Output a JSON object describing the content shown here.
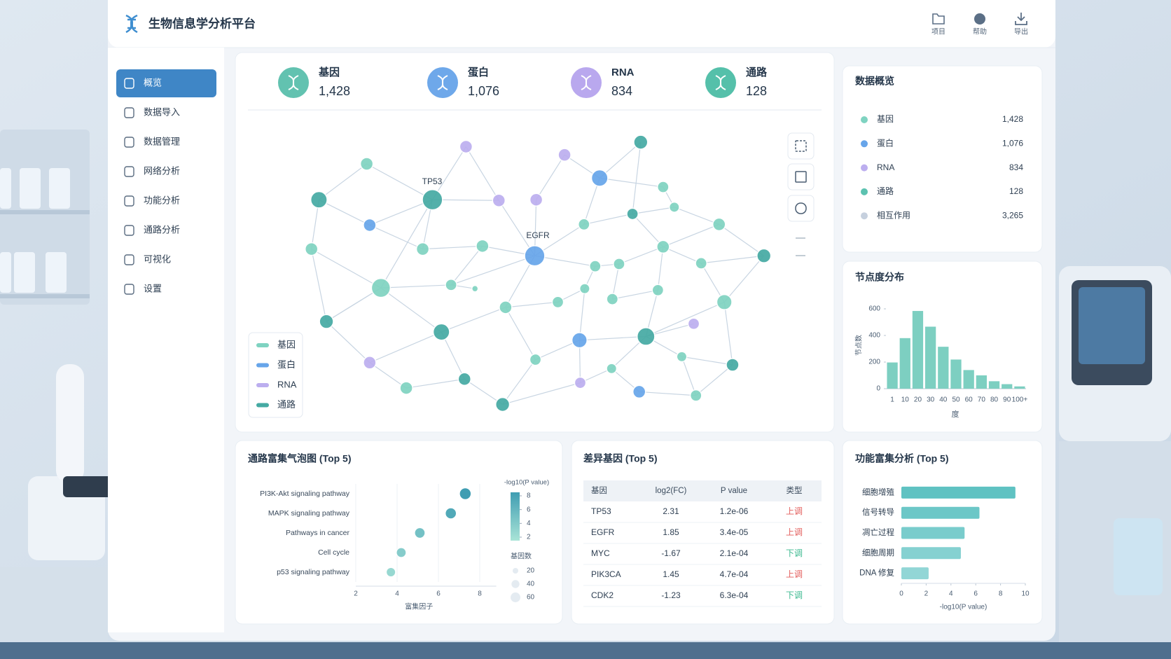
{
  "header": {
    "title": "生物信息学分析平台",
    "actions": [
      "项目",
      "帮助",
      "导出"
    ]
  },
  "nav": {
    "items": [
      "概览",
      "数据导入",
      "数据管理",
      "网络分析",
      "功能分析",
      "通路分析",
      "可视化",
      "设置"
    ]
  },
  "stats": [
    {
      "label": "基因",
      "value": "1,428"
    },
    {
      "label": "蛋白",
      "value": "1,076"
    },
    {
      "label": "RNA",
      "value": "834"
    },
    {
      "label": "通路",
      "value": "128"
    }
  ],
  "network": {
    "node_labels": [
      "TP53",
      "EGFR"
    ],
    "legend": [
      "基因",
      "蛋白",
      "RNA",
      "通路"
    ]
  },
  "overview": {
    "title": "数据概览",
    "items": [
      {
        "label": "基因",
        "value": "1,428"
      },
      {
        "label": "蛋白",
        "value": "1,076"
      },
      {
        "label": "RNA",
        "value": "834"
      },
      {
        "label": "通路",
        "value": "128"
      },
      {
        "label": "相互作用",
        "value": "3,265"
      }
    ]
  },
  "chart_data": [
    {
      "type": "bar",
      "title": "节点度分布",
      "categories": [
        "1",
        "10",
        "20",
        "30",
        "40",
        "50",
        "60",
        "70",
        "80",
        "90",
        "100+"
      ],
      "values": [
        197,
        380,
        584,
        466,
        315,
        219,
        140,
        100,
        56,
        34,
        17
      ],
      "color": "#7dcfc1",
      "ylim": [
        0,
        650
      ],
      "yticks": [
        0,
        200,
        400,
        600
      ],
      "xlabel": "度",
      "ylabel": "节点数"
    },
    {
      "type": "scatter",
      "title": "通路富集气泡图 (Top 5)",
      "categories": [
        "PI3K-Akt signaling pathway",
        "MAPK signaling pathway",
        "Pathways in cancer",
        "Cell cycle",
        "p53 signaling pathway"
      ],
      "x": [
        7.3,
        6.6,
        5.1,
        4.2,
        3.7
      ],
      "color_values": [
        8,
        7,
        5,
        4,
        3
      ],
      "sizes": [
        40,
        36,
        32,
        28,
        25
      ],
      "xlim": [
        2,
        8.8
      ],
      "xticks": [
        2,
        4,
        6,
        8
      ],
      "xlabel": "富集因子",
      "grid": true,
      "colorbar": {
        "title": "-log10(P value)",
        "ticks": [
          8,
          6,
          4,
          2
        ],
        "colors": [
          "#a9e4d7",
          "#3f9db2"
        ]
      },
      "size_legend": {
        "title": "基因数",
        "ticks": [
          20,
          40,
          60
        ]
      }
    },
    {
      "type": "barh",
      "title": "功能富集分析 (Top 5)",
      "categories": [
        "细胞增殖",
        "信号转导",
        "凋亡过程",
        "细胞周期",
        "DNA 修复"
      ],
      "values": [
        9.2,
        6.3,
        5.1,
        4.8,
        2.2
      ],
      "color": "#5fc2c2",
      "xlim": [
        0,
        10
      ],
      "xticks": [
        0,
        2,
        4,
        6,
        8,
        10
      ],
      "xlabel": "-log10(P value)"
    }
  ],
  "table": {
    "title": "差异基因 (Top 5)",
    "columns": [
      "基因",
      "log2(FC)",
      "P value",
      "类型"
    ],
    "rows": [
      [
        "TP53",
        "2.31",
        "1.2e-06",
        "上调"
      ],
      [
        "EGFR",
        "1.85",
        "3.4e-05",
        "上调"
      ],
      [
        "MYC",
        "-1.67",
        "2.1e-04",
        "下调"
      ],
      [
        "PIK3CA",
        "1.45",
        "4.7e-04",
        "上调"
      ],
      [
        "CDK2",
        "-1.23",
        "6.3e-04",
        "下调"
      ]
    ]
  }
}
